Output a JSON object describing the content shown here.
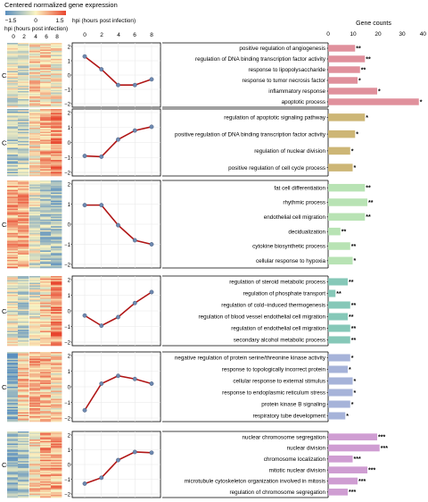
{
  "colorbar": {
    "title": "Centered normalized gene expression",
    "ticks": [
      "−1.5",
      "0",
      "1.5"
    ],
    "colors": {
      "low": "#5a8fbf",
      "mid": "#fbf4c2",
      "high": "#e8452e"
    }
  },
  "heatmap_axis": {
    "title": "hpi (hours post infection)",
    "ticks": [
      "0",
      "2",
      "4",
      "6",
      "8"
    ]
  },
  "colors": {
    "line": "#b01515",
    "point": "#6e89b0",
    "grid": "#e8e8e8",
    "bars": [
      "#e0909c",
      "#cdb676",
      "#b8e3b4",
      "#86c8b8",
      "#a6b3d9",
      "#cf9dd2"
    ]
  },
  "chart_data": [
    {
      "type": "heatmap",
      "title": "Centered normalized gene expression",
      "xlabel": "hpi (hours post infection)",
      "x": [
        0,
        2,
        4,
        6,
        8
      ],
      "clusters": [
        {
          "label": "C1",
          "mean_profile": [
            -0.2,
            -0.4,
            0.2,
            0.2,
            0.0
          ]
        },
        {
          "label": "C2",
          "mean_profile": [
            -0.6,
            -0.5,
            0.1,
            0.5,
            0.9
          ]
        },
        {
          "label": "C3",
          "mean_profile": [
            0.6,
            0.6,
            -0.2,
            -0.6,
            -0.8
          ]
        },
        {
          "label": "C4",
          "mean_profile": [
            -0.2,
            -0.5,
            -0.2,
            0.3,
            0.9
          ]
        },
        {
          "label": "C5",
          "mean_profile": [
            -1.0,
            0.3,
            0.6,
            0.4,
            0.2
          ]
        },
        {
          "label": "C6",
          "mean_profile": [
            -0.9,
            -0.7,
            0.2,
            0.6,
            0.6
          ]
        }
      ]
    },
    {
      "type": "line",
      "xlabel": "hpi (hours post infection)",
      "x": [
        0,
        2,
        4,
        6,
        8
      ],
      "xticks": [
        "0",
        "2",
        "4",
        "6",
        "8"
      ],
      "ylim": [
        -2,
        2
      ],
      "yticks": [
        "2",
        "1",
        "0",
        "−1",
        "−2"
      ],
      "panels": [
        {
          "label": "C1",
          "values": [
            1.3,
            0.4,
            -0.7,
            -0.7,
            -0.3
          ]
        },
        {
          "label": "C2",
          "values": [
            -0.9,
            -0.95,
            0.2,
            0.8,
            1.05
          ]
        },
        {
          "label": "C3",
          "values": [
            0.95,
            0.95,
            -0.05,
            -0.8,
            -1.0
          ]
        },
        {
          "label": "C4",
          "values": [
            -0.3,
            -0.95,
            -0.4,
            0.5,
            1.2
          ]
        },
        {
          "label": "C5",
          "values": [
            -1.5,
            0.2,
            0.7,
            0.5,
            0.2
          ]
        },
        {
          "label": "C6",
          "values": [
            -1.3,
            -0.9,
            0.3,
            0.85,
            0.8
          ]
        }
      ]
    },
    {
      "type": "bar",
      "orientation": "horizontal",
      "xlabel": "Gene counts",
      "xlim": [
        0,
        40
      ],
      "xticks": [
        "0",
        "10",
        "20",
        "30",
        "40"
      ],
      "groups": [
        {
          "label": "C1",
          "terms": [
            {
              "name": "positive regulation of angiogenesis",
              "value": 11,
              "sig": "**"
            },
            {
              "name": "regulation of DNA binding transcription factor activity",
              "value": 15,
              "sig": "**"
            },
            {
              "name": "response to lipopolysaccharide",
              "value": 13,
              "sig": "**"
            },
            {
              "name": "response to tumor necrosis factor",
              "value": 12,
              "sig": "*"
            },
            {
              "name": "inflammatory response",
              "value": 20,
              "sig": "*"
            },
            {
              "name": "apoptotic process",
              "value": 37,
              "sig": "*"
            }
          ]
        },
        {
          "label": "C2",
          "terms": [
            {
              "name": "regulation of apoptotic signaling pathway",
              "value": 15,
              "sig": "*"
            },
            {
              "name": "positive regulation of DNA binding transcription factor activity",
              "value": 11,
              "sig": "*"
            },
            {
              "name": "regulation of nuclear division",
              "value": 9,
              "sig": "*"
            },
            {
              "name": "positive regulation of cell cycle process",
              "value": 10,
              "sig": "*"
            }
          ]
        },
        {
          "label": "C3",
          "terms": [
            {
              "name": "fat cell differentiation",
              "value": 15,
              "sig": "**"
            },
            {
              "name": "rhythmic process",
              "value": 16,
              "sig": "**"
            },
            {
              "name": "endothelial cell migration",
              "value": 15,
              "sig": "**"
            },
            {
              "name": "decidualization",
              "value": 5,
              "sig": "**"
            },
            {
              "name": "cytokine biosynthetic process",
              "value": 9,
              "sig": "**"
            },
            {
              "name": "cellular response to hypoxia",
              "value": 10,
              "sig": "*"
            }
          ]
        },
        {
          "label": "C4",
          "terms": [
            {
              "name": "regulation of steroid metabolic process",
              "value": 8,
              "sig": "**"
            },
            {
              "name": "regulation of phosphate transport",
              "value": 3,
              "sig": "**"
            },
            {
              "name": "regulation of cold−induced thermogenesis",
              "value": 9,
              "sig": "**"
            },
            {
              "name": "regulation of blood vessel endothelial cell migration",
              "value": 8,
              "sig": "**"
            },
            {
              "name": "regulation of endothelial cell migration",
              "value": 9,
              "sig": "**"
            },
            {
              "name": "secondary alcohol metabolic process",
              "value": 9,
              "sig": "**"
            }
          ]
        },
        {
          "label": "C5",
          "terms": [
            {
              "name": "negative regulation of protein serine/threonine kinase activity",
              "value": 9,
              "sig": "*"
            },
            {
              "name": "response to topologically incorrect protein",
              "value": 8,
              "sig": "*"
            },
            {
              "name": "cellular response to external stimulus",
              "value": 10,
              "sig": "*"
            },
            {
              "name": "response to endoplasmic reticulum stress",
              "value": 10,
              "sig": "*"
            },
            {
              "name": "protein kinase B signaling",
              "value": 9,
              "sig": "*"
            },
            {
              "name": "respiratory tube development",
              "value": 7,
              "sig": "*"
            }
          ]
        },
        {
          "label": "C6",
          "terms": [
            {
              "name": "nuclear chromosome segregation",
              "value": 20,
              "sig": "***"
            },
            {
              "name": "nuclear division",
              "value": 21,
              "sig": "***"
            },
            {
              "name": "chromosome localization",
              "value": 10,
              "sig": "***"
            },
            {
              "name": "mitotic nuclear division",
              "value": 16,
              "sig": "***"
            },
            {
              "name": "microtubule cytoskeleton organization involved in mitosis",
              "value": 12,
              "sig": "***"
            },
            {
              "name": "regulation of chromosome segregation",
              "value": 8,
              "sig": "***"
            }
          ]
        }
      ]
    }
  ]
}
